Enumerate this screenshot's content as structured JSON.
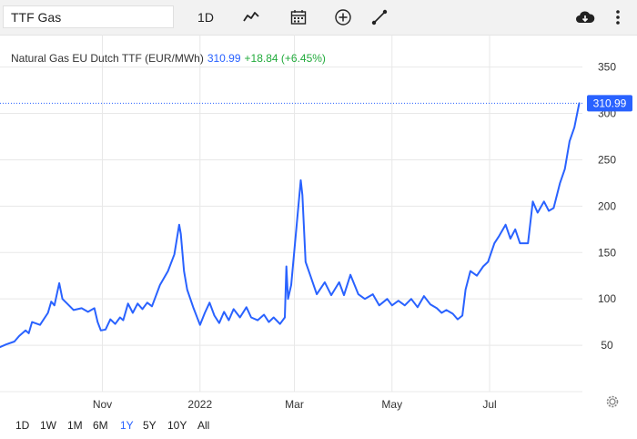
{
  "toolbar": {
    "symbol_value": "TTF Gas",
    "interval_label": "1D",
    "icons": [
      "chart-type-icon",
      "calendar-icon",
      "add-indicator-icon",
      "draw-line-icon",
      "cloud-download-icon",
      "more-menu-icon"
    ]
  },
  "legend": {
    "name": "Natural Gas EU Dutch TTF (EUR/MWh)",
    "price": "310.99",
    "change": "+18.84 (+6.45%)"
  },
  "colors": {
    "line": "#2962ff",
    "up": "#22ab3c",
    "grid": "#e8e8e8",
    "price_badge": "#2962ff"
  },
  "ranges": [
    {
      "label": "1D",
      "active": false
    },
    {
      "label": "1W",
      "active": false
    },
    {
      "label": "1M",
      "active": false
    },
    {
      "label": "6M",
      "active": false
    },
    {
      "label": "1Y",
      "active": true
    },
    {
      "label": "5Y",
      "active": false
    },
    {
      "label": "10Y",
      "active": false
    },
    {
      "label": "All",
      "active": false
    }
  ],
  "chart_data": {
    "type": "line",
    "x_ticks": [
      {
        "label": "Nov",
        "date": "2021-11-01"
      },
      {
        "label": "2022",
        "date": "2022-01-01"
      },
      {
        "label": "Mar",
        "date": "2022-03-01"
      },
      {
        "label": "May",
        "date": "2022-05-01"
      },
      {
        "label": "Jul",
        "date": "2022-07-01"
      }
    ],
    "y_ticks": [
      50,
      100,
      150,
      200,
      250,
      300,
      350
    ],
    "ylim": [
      0,
      385
    ],
    "xlim": [
      "2021-08-29",
      "2022-08-28"
    ],
    "last_price_label": "310.99",
    "series": [
      {
        "values": [
          [
            "2021-08-29",
            48
          ],
          [
            "2021-09-02",
            51
          ],
          [
            "2021-09-07",
            54
          ],
          [
            "2021-09-10",
            60
          ],
          [
            "2021-09-14",
            66
          ],
          [
            "2021-09-16",
            63
          ],
          [
            "2021-09-18",
            75
          ],
          [
            "2021-09-23",
            72
          ],
          [
            "2021-09-28",
            85
          ],
          [
            "2021-09-30",
            97
          ],
          [
            "2021-10-02",
            93
          ],
          [
            "2021-10-05",
            117
          ],
          [
            "2021-10-07",
            100
          ],
          [
            "2021-10-10",
            95
          ],
          [
            "2021-10-14",
            88
          ],
          [
            "2021-10-19",
            90
          ],
          [
            "2021-10-23",
            86
          ],
          [
            "2021-10-27",
            90
          ],
          [
            "2021-10-29",
            75
          ],
          [
            "2021-10-31",
            66
          ],
          [
            "2021-11-03",
            67
          ],
          [
            "2021-11-06",
            78
          ],
          [
            "2021-11-09",
            73
          ],
          [
            "2021-11-12",
            80
          ],
          [
            "2021-11-14",
            77
          ],
          [
            "2021-11-17",
            95
          ],
          [
            "2021-11-20",
            85
          ],
          [
            "2021-11-23",
            95
          ],
          [
            "2021-11-26",
            89
          ],
          [
            "2021-11-29",
            96
          ],
          [
            "2021-12-02",
            92
          ],
          [
            "2021-12-07",
            115
          ],
          [
            "2021-12-12",
            130
          ],
          [
            "2021-12-16",
            148
          ],
          [
            "2021-12-19",
            180
          ],
          [
            "2021-12-20",
            170
          ],
          [
            "2021-12-22",
            130
          ],
          [
            "2021-12-24",
            110
          ],
          [
            "2021-12-28",
            90
          ],
          [
            "2022-01-01",
            72
          ],
          [
            "2022-01-04",
            85
          ],
          [
            "2022-01-07",
            96
          ],
          [
            "2022-01-10",
            82
          ],
          [
            "2022-01-13",
            74
          ],
          [
            "2022-01-16",
            86
          ],
          [
            "2022-01-19",
            77
          ],
          [
            "2022-01-22",
            89
          ],
          [
            "2022-01-26",
            80
          ],
          [
            "2022-01-30",
            91
          ],
          [
            "2022-02-02",
            80
          ],
          [
            "2022-02-06",
            77
          ],
          [
            "2022-02-10",
            83
          ],
          [
            "2022-02-13",
            75
          ],
          [
            "2022-02-16",
            80
          ],
          [
            "2022-02-20",
            73
          ],
          [
            "2022-02-23",
            80
          ],
          [
            "2022-02-24",
            135
          ],
          [
            "2022-02-25",
            100
          ],
          [
            "2022-02-27",
            115
          ],
          [
            "2022-03-02",
            172
          ],
          [
            "2022-03-05",
            228
          ],
          [
            "2022-03-06",
            212
          ],
          [
            "2022-03-08",
            140
          ],
          [
            "2022-03-11",
            125
          ],
          [
            "2022-03-15",
            105
          ],
          [
            "2022-03-20",
            118
          ],
          [
            "2022-03-24",
            104
          ],
          [
            "2022-03-29",
            118
          ],
          [
            "2022-04-01",
            104
          ],
          [
            "2022-04-05",
            126
          ],
          [
            "2022-04-10",
            105
          ],
          [
            "2022-04-14",
            100
          ],
          [
            "2022-04-19",
            105
          ],
          [
            "2022-04-23",
            93
          ],
          [
            "2022-04-28",
            100
          ],
          [
            "2022-05-01",
            93
          ],
          [
            "2022-05-05",
            98
          ],
          [
            "2022-05-09",
            93
          ],
          [
            "2022-05-13",
            100
          ],
          [
            "2022-05-17",
            91
          ],
          [
            "2022-05-21",
            103
          ],
          [
            "2022-05-25",
            94
          ],
          [
            "2022-05-29",
            90
          ],
          [
            "2022-06-01",
            85
          ],
          [
            "2022-06-04",
            88
          ],
          [
            "2022-06-08",
            84
          ],
          [
            "2022-06-11",
            78
          ],
          [
            "2022-06-14",
            82
          ],
          [
            "2022-06-16",
            110
          ],
          [
            "2022-06-19",
            130
          ],
          [
            "2022-06-23",
            125
          ],
          [
            "2022-06-27",
            135
          ],
          [
            "2022-06-30",
            140
          ],
          [
            "2022-07-04",
            160
          ],
          [
            "2022-07-07",
            168
          ],
          [
            "2022-07-11",
            180
          ],
          [
            "2022-07-14",
            165
          ],
          [
            "2022-07-17",
            175
          ],
          [
            "2022-07-20",
            160
          ],
          [
            "2022-07-25",
            160
          ],
          [
            "2022-07-28",
            205
          ],
          [
            "2022-07-31",
            193
          ],
          [
            "2022-08-04",
            205
          ],
          [
            "2022-08-07",
            195
          ],
          [
            "2022-08-10",
            198
          ],
          [
            "2022-08-14",
            225
          ],
          [
            "2022-08-17",
            240
          ],
          [
            "2022-08-20",
            270
          ],
          [
            "2022-08-23",
            285
          ],
          [
            "2022-08-26",
            310.99
          ]
        ]
      }
    ]
  }
}
